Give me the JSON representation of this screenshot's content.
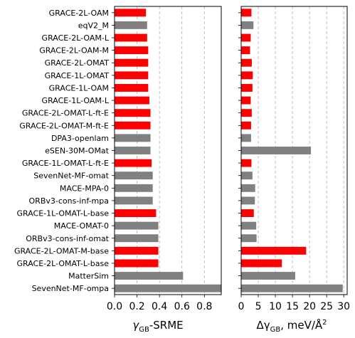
{
  "chart_data": [
    {
      "type": "bar",
      "orientation": "horizontal",
      "title": "",
      "xlabel": "γGB-SRME",
      "xlabel_parts": {
        "symbol": "γ",
        "subscript": "GB",
        "suffix": "-SRME"
      },
      "xlim": [
        0,
        0.95
      ],
      "xticks": [
        0.0,
        0.2,
        0.4,
        0.6,
        0.8
      ],
      "xtick_labels": [
        "0.0",
        "0.2",
        "0.4",
        "0.6",
        "0.8"
      ],
      "grid": "vertical dashed",
      "categories": [
        "GRACE-2L-OAM",
        "eqV2_M",
        "GRACE-2L-OAM-L",
        "GRACE-2L-OAM-M",
        "GRACE-2L-OMAT",
        "GRACE-1L-OMAT",
        "GRACE-1L-OAM",
        "GRACE-1L-OAM-L",
        "GRACE-2L-OMAT-L-ft-E",
        "GRACE-2L-OMAT-M-ft-E",
        "DPA3-openlam",
        "eSEN-30M-OMat",
        "GRACE-1L-OMAT-L-ft-E",
        "SevenNet-MF-omat",
        "MACE-MPA-0",
        "ORBv3-cons-inf-mpa",
        "GRACE-1L-OMAT-L-base",
        "MACE-OMAT-0",
        "ORBv3-cons-inf-omat",
        "GRACE-2L-OMAT-M-base",
        "GRACE-2L-OMAT-L-base",
        "MatterSim",
        "SevenNet-MF-ompa"
      ],
      "values": [
        0.28,
        0.29,
        0.29,
        0.3,
        0.3,
        0.3,
        0.3,
        0.31,
        0.32,
        0.32,
        0.32,
        0.32,
        0.33,
        0.34,
        0.34,
        0.34,
        0.37,
        0.39,
        0.39,
        0.39,
        0.39,
        0.61,
        0.95
      ],
      "highlight": [
        true,
        false,
        true,
        true,
        true,
        true,
        true,
        true,
        true,
        true,
        false,
        false,
        true,
        false,
        false,
        false,
        true,
        false,
        false,
        true,
        true,
        false,
        false
      ]
    },
    {
      "type": "bar",
      "orientation": "horizontal",
      "title": "",
      "xlabel": "ΔγGB, meV/Å²",
      "xlabel_parts": {
        "prefix": "Δγ",
        "subscript": "GB",
        "suffix": ", meV/Å",
        "superscript": "2"
      },
      "xlim": [
        0,
        31
      ],
      "xticks": [
        0,
        5,
        10,
        15,
        20,
        25,
        30
      ],
      "xtick_labels": [
        "0",
        "5",
        "10",
        "15",
        "20",
        "25",
        "30"
      ],
      "grid": "vertical dashed",
      "categories": [
        "GRACE-2L-OAM",
        "eqV2_M",
        "GRACE-2L-OAM-L",
        "GRACE-2L-OAM-M",
        "GRACE-2L-OMAT",
        "GRACE-1L-OMAT",
        "GRACE-1L-OAM",
        "GRACE-1L-OAM-L",
        "GRACE-2L-OMAT-L-ft-E",
        "GRACE-2L-OMAT-M-ft-E",
        "DPA3-openlam",
        "eSEN-30M-OMat",
        "GRACE-1L-OMAT-L-ft-E",
        "SevenNet-MF-omat",
        "MACE-MPA-0",
        "ORBv3-cons-inf-mpa",
        "GRACE-1L-OMAT-L-base",
        "MACE-OMAT-0",
        "ORBv3-cons-inf-omat",
        "GRACE-2L-OMAT-M-base",
        "GRACE-2L-OMAT-L-base",
        "MatterSim",
        "SevenNet-MF-ompa"
      ],
      "values": [
        3.0,
        3.6,
        2.8,
        2.6,
        3.1,
        3.4,
        3.3,
        2.8,
        3.1,
        2.9,
        2.9,
        20.4,
        3.0,
        3.3,
        4.1,
        4.0,
        3.7,
        4.4,
        4.5,
        19.0,
        11.9,
        15.8,
        29.7
      ],
      "highlight": [
        true,
        false,
        true,
        true,
        true,
        true,
        true,
        true,
        true,
        true,
        false,
        false,
        true,
        false,
        false,
        false,
        true,
        false,
        false,
        true,
        true,
        false,
        false
      ]
    }
  ],
  "colors": {
    "highlight": "#ff0000",
    "other": "#808080",
    "grid": "#b0b0b0"
  }
}
